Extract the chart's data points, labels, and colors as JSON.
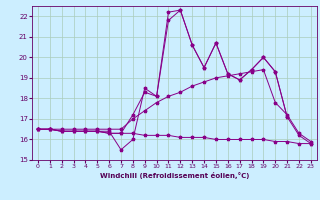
{
  "xlabel": "Windchill (Refroidissement éolien,°C)",
  "bg_color": "#cceeff",
  "grid_color": "#aaccbb",
  "line_color": "#880088",
  "xlim": [
    -0.5,
    23.5
  ],
  "ylim": [
    15,
    22.5
  ],
  "yticks": [
    15,
    16,
    17,
    18,
    19,
    20,
    21,
    22
  ],
  "xticks": [
    0,
    1,
    2,
    3,
    4,
    5,
    6,
    7,
    8,
    9,
    10,
    11,
    12,
    13,
    14,
    15,
    16,
    17,
    18,
    19,
    20,
    21,
    22,
    23
  ],
  "series": [
    {
      "x": [
        0,
        1,
        2,
        3,
        4,
        5,
        6,
        7,
        8,
        9,
        10,
        11,
        12,
        13,
        14,
        15,
        16,
        17,
        18,
        19,
        20,
        21
      ],
      "y": [
        16.5,
        16.5,
        16.4,
        16.4,
        16.4,
        16.4,
        16.4,
        15.5,
        16.0,
        18.5,
        18.1,
        22.2,
        22.3,
        20.6,
        19.5,
        20.7,
        19.2,
        18.9,
        19.4,
        20.0,
        19.3,
        17.1
      ]
    },
    {
      "x": [
        0,
        1,
        2,
        3,
        4,
        5,
        6,
        7,
        8,
        9,
        10,
        11,
        12,
        13,
        14,
        15,
        16,
        17,
        18,
        19,
        20,
        21,
        22,
        23
      ],
      "y": [
        16.5,
        16.5,
        16.5,
        16.5,
        16.5,
        16.5,
        16.5,
        16.5,
        17.0,
        17.4,
        17.8,
        18.1,
        18.3,
        18.6,
        18.8,
        19.0,
        19.1,
        19.2,
        19.3,
        19.4,
        17.8,
        17.2,
        16.3,
        15.9
      ]
    },
    {
      "x": [
        0,
        1,
        2,
        3,
        4,
        5,
        6,
        7,
        8,
        9,
        10,
        11,
        12,
        13,
        14,
        15,
        16,
        17,
        18,
        19,
        20,
        21,
        22,
        23
      ],
      "y": [
        16.5,
        16.5,
        16.4,
        16.4,
        16.4,
        16.4,
        16.3,
        16.3,
        16.3,
        16.2,
        16.2,
        16.2,
        16.1,
        16.1,
        16.1,
        16.0,
        16.0,
        16.0,
        16.0,
        16.0,
        15.9,
        15.9,
        15.8,
        15.8
      ]
    },
    {
      "x": [
        0,
        1,
        2,
        3,
        4,
        5,
        6,
        7,
        8,
        9,
        10,
        11,
        12,
        13,
        14,
        15,
        16,
        17,
        18,
        19,
        20,
        21,
        22,
        23
      ],
      "y": [
        16.5,
        16.5,
        16.4,
        16.4,
        16.4,
        16.4,
        16.3,
        16.3,
        17.2,
        18.3,
        18.1,
        21.8,
        22.3,
        20.6,
        19.5,
        20.7,
        19.2,
        18.9,
        19.4,
        20.0,
        19.3,
        17.1,
        16.2,
        15.8
      ]
    }
  ]
}
